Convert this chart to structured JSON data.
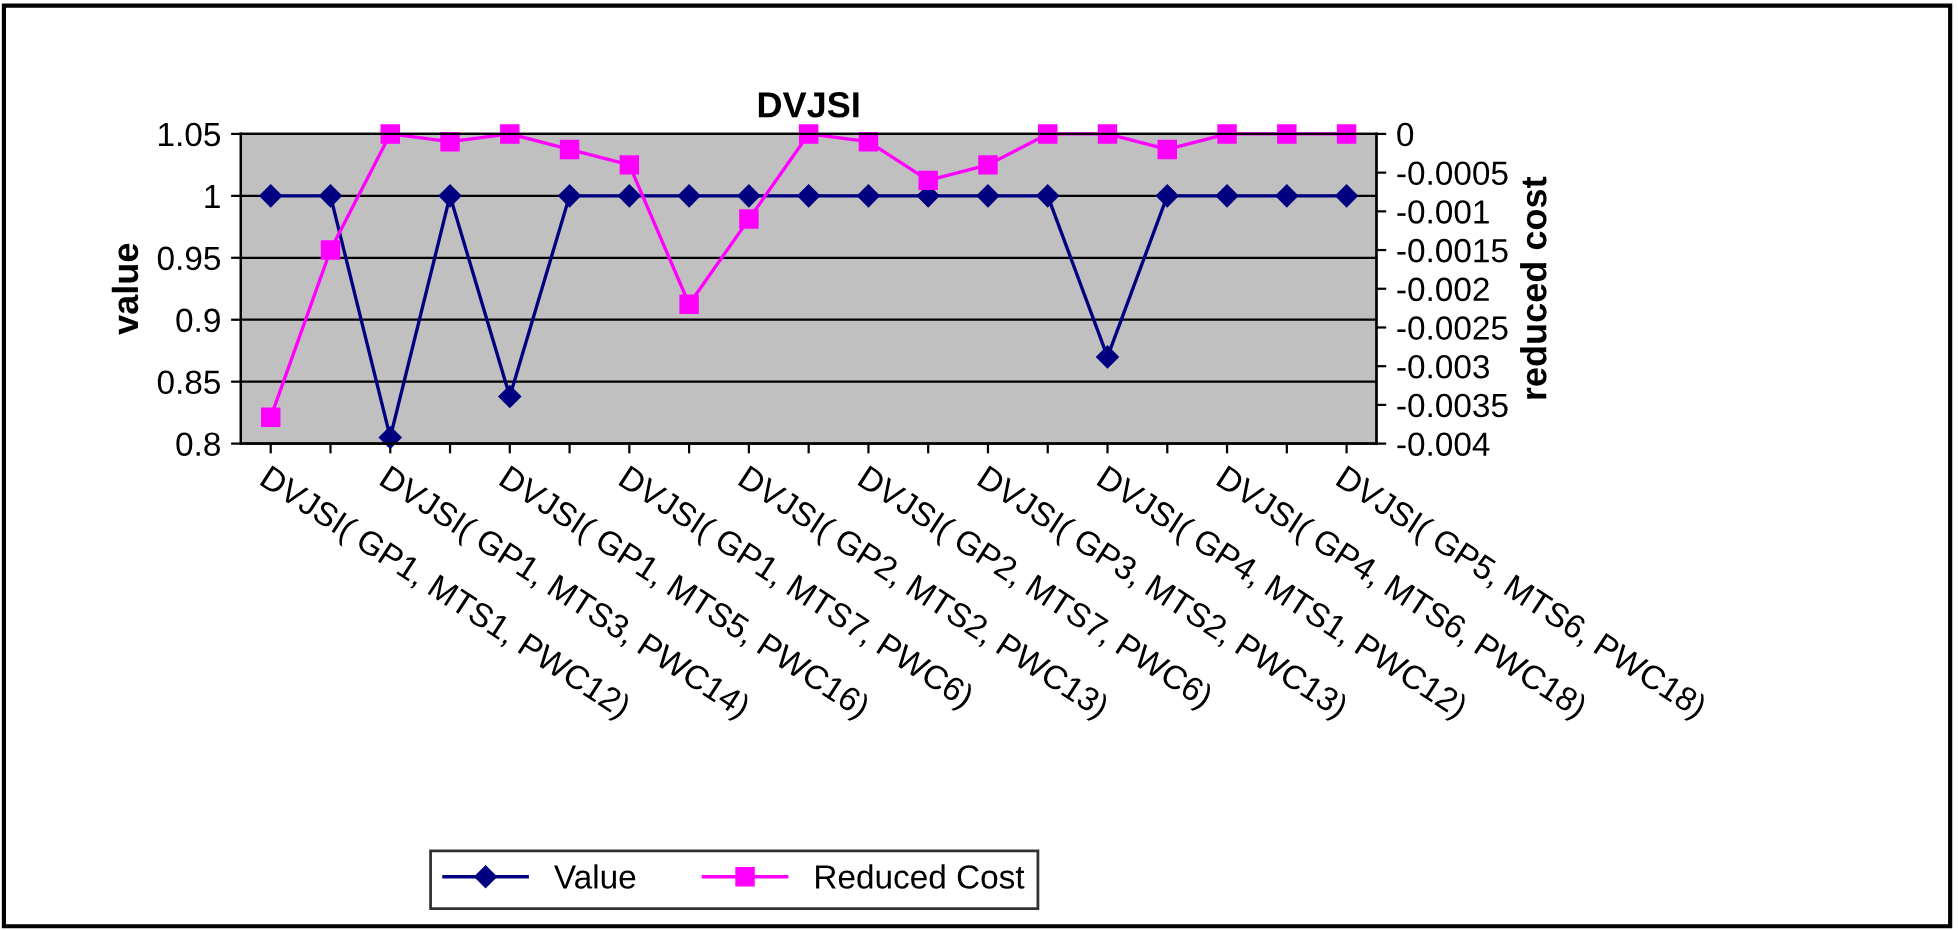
{
  "chart_data": {
    "type": "line",
    "title": "DVJSI",
    "ylabel": "value",
    "y2label": "reduced cost",
    "categories": [
      "DVJSI( GP1, MTS1, PWC12)",
      null,
      "DVJSI( GP1, MTS3, PWC14)",
      null,
      "DVJSI( GP1, MTS5, PWC16)",
      null,
      "DVJSI( GP1, MTS7, PWC6)",
      null,
      "DVJSI( GP2, MTS2, PWC13)",
      null,
      "DVJSI( GP2, MTS7, PWC6)",
      null,
      "DVJSI( GP3, MTS2, PWC13)",
      null,
      "DVJSI( GP4, MTS1, PWC12)",
      null,
      "DVJSI( GP4, MTS6, PWC18)",
      null,
      "DVJSI( GP5, MTS6, PWC18)"
    ],
    "series": [
      {
        "name": "Value",
        "color": "#000080",
        "marker": "diamond",
        "values": [
          1,
          1,
          0.805,
          1,
          0.838,
          1,
          1,
          1,
          1,
          1,
          1,
          1,
          1,
          1,
          0.87,
          1,
          1,
          1,
          1
        ]
      },
      {
        "name": "Reduced Cost",
        "color": "#ff00ff",
        "marker": "square",
        "axis": "y2",
        "values": [
          -0.00366,
          -0.0015,
          0,
          -0.0001,
          0,
          -0.0002,
          -0.0004,
          -0.0022,
          -0.0011,
          0,
          -0.0001,
          -0.0006,
          -0.0004,
          0,
          0,
          -0.0002,
          0,
          0,
          0
        ]
      }
    ],
    "ylim": [
      0.8,
      1.05
    ],
    "yticks": [
      {
        "value": 0.8,
        "label": "0.8"
      },
      {
        "value": 0.85,
        "label": "0.85"
      },
      {
        "value": 0.9,
        "label": "0.9"
      },
      {
        "value": 0.95,
        "label": "0.95"
      },
      {
        "value": 1,
        "label": "1"
      },
      {
        "value": 1.05,
        "label": "1.05"
      }
    ],
    "y2lim": [
      -0.004,
      0
    ],
    "y2ticks": [
      {
        "value": -0.004,
        "label": "-0.004"
      },
      {
        "value": -0.0035,
        "label": "-0.0035"
      },
      {
        "value": -0.003,
        "label": "-0.003"
      },
      {
        "value": -0.0025,
        "label": "-0.0025"
      },
      {
        "value": -0.002,
        "label": "-0.002"
      },
      {
        "value": -0.0015,
        "label": "-0.0015"
      },
      {
        "value": -0.001,
        "label": "-0.001"
      },
      {
        "value": -0.0005,
        "label": "-0.0005"
      },
      {
        "value": 0,
        "label": "0"
      }
    ],
    "grid": "y",
    "legend": "bottom",
    "line_style": "solid"
  }
}
